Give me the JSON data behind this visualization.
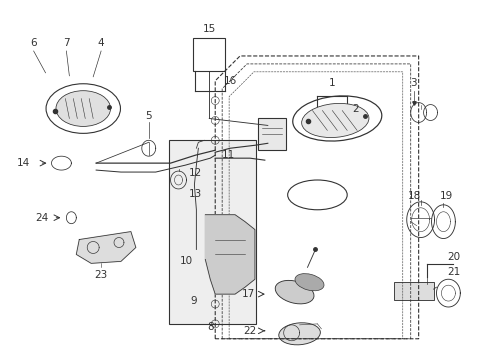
{
  "bg_color": "#ffffff",
  "fig_width": 4.89,
  "fig_height": 3.6,
  "dpi": 100,
  "gray": "#333333",
  "lw": 0.8
}
